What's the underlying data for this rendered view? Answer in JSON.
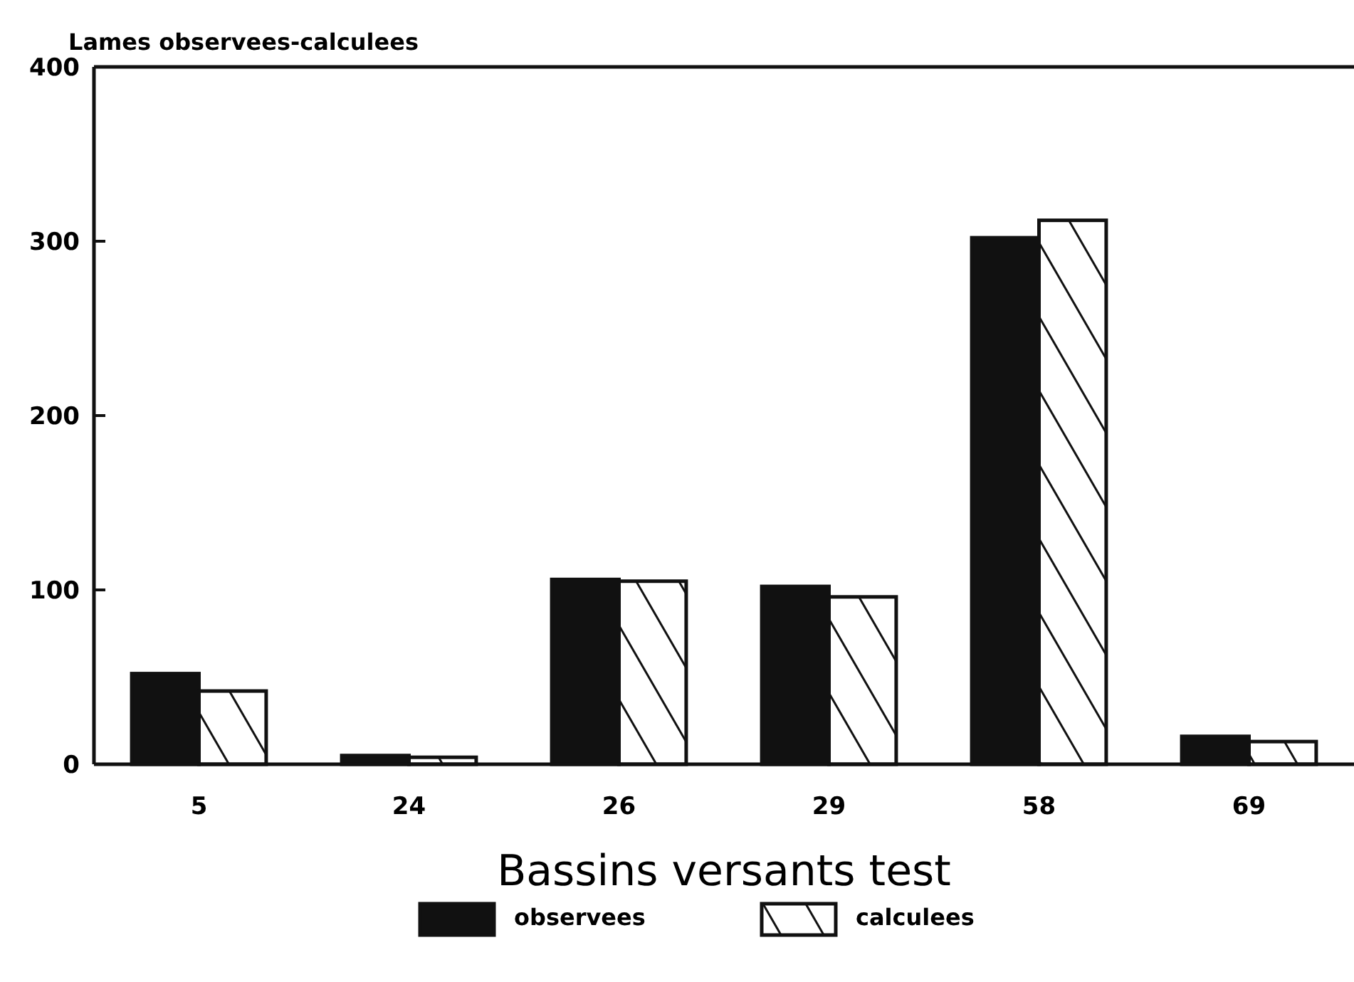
{
  "chart_data": {
    "type": "bar",
    "ylabel": "Lames observees-calculees",
    "xlabel": "Bassins versants test",
    "categories": [
      "5",
      "24",
      "26",
      "29",
      "58",
      "69"
    ],
    "series": [
      {
        "name": "observees",
        "color": "#111111",
        "values": [
          52,
          5,
          106,
          102,
          302,
          16
        ]
      },
      {
        "name": "calculees",
        "color": "#111111",
        "values": [
          42,
          4,
          105,
          96,
          312,
          13
        ]
      }
    ],
    "ylim": [
      0,
      400
    ],
    "yticks": [
      0,
      100,
      200,
      300,
      400
    ],
    "grid": false,
    "legend": "bottom"
  }
}
